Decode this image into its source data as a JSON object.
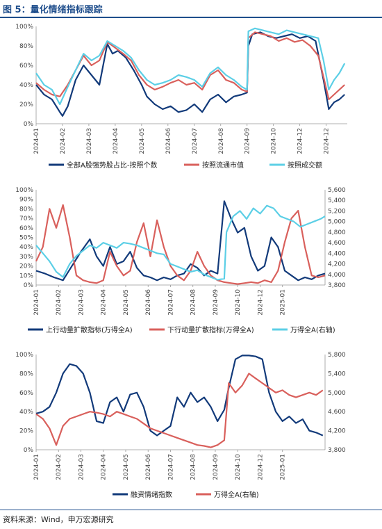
{
  "figure": {
    "title": "图 5：量化情绪指标跟踪",
    "source": "资料来源：Wind，申万宏源研究"
  },
  "colors": {
    "navy": "#123a7a",
    "red": "#d9605c",
    "cyan": "#5ccfe6"
  },
  "chart_data": [
    {
      "type": "line",
      "x_ticks": [
        "2024-01",
        "2024-02",
        "2024-03",
        "2024-04",
        "2024-05",
        "2024-06",
        "2024-07",
        "2024-08",
        "2024-09",
        "2024-10",
        "2024-12",
        "2024-12"
      ],
      "y_ticks": [
        "0%",
        "20%",
        "40%",
        "60%",
        "80%",
        "100%"
      ],
      "ylim": [
        0,
        100
      ],
      "x_range": [
        0,
        11.8
      ],
      "series": [
        {
          "name": "全部A股强势股占比-按照个数",
          "color": "#123a7a",
          "x": [
            0,
            0.3,
            0.6,
            0.9,
            1.0,
            1.2,
            1.5,
            1.8,
            2.1,
            2.4,
            2.7,
            2.9,
            3.1,
            3.4,
            3.7,
            4.0,
            4.2,
            4.5,
            4.8,
            5.1,
            5.4,
            5.7,
            6.0,
            6.3,
            6.6,
            6.9,
            7.2,
            7.5,
            7.8,
            8.0,
            8.05,
            8.2,
            8.5,
            8.8,
            9.1,
            9.4,
            9.7,
            10.0,
            10.3,
            10.6,
            10.9,
            11.1,
            11.3,
            11.5,
            11.7
          ],
          "y": [
            40,
            30,
            25,
            12,
            8,
            18,
            45,
            60,
            50,
            40,
            82,
            72,
            75,
            68,
            55,
            40,
            28,
            20,
            15,
            18,
            12,
            14,
            20,
            12,
            25,
            30,
            22,
            28,
            30,
            32,
            80,
            92,
            94,
            90,
            88,
            90,
            92,
            88,
            90,
            85,
            45,
            15,
            22,
            25,
            30
          ]
        },
        {
          "name": "按照流通市值",
          "color": "#d9605c",
          "x": [
            0,
            0.3,
            0.6,
            0.9,
            1.2,
            1.5,
            1.8,
            2.1,
            2.4,
            2.7,
            3.0,
            3.3,
            3.6,
            3.9,
            4.2,
            4.5,
            4.8,
            5.1,
            5.4,
            5.7,
            6.0,
            6.3,
            6.6,
            6.9,
            7.2,
            7.5,
            7.8,
            8.0,
            8.05,
            8.3,
            8.6,
            8.9,
            9.2,
            9.5,
            9.8,
            10.1,
            10.4,
            10.7,
            10.9,
            11.1,
            11.3,
            11.5,
            11.7
          ],
          "y": [
            42,
            35,
            30,
            28,
            40,
            55,
            70,
            60,
            65,
            84,
            78,
            72,
            65,
            50,
            40,
            35,
            38,
            42,
            45,
            40,
            42,
            35,
            50,
            55,
            45,
            42,
            35,
            33,
            88,
            94,
            92,
            90,
            85,
            88,
            84,
            86,
            80,
            70,
            48,
            25,
            30,
            35,
            40
          ]
        },
        {
          "name": "按照成交额",
          "color": "#5ccfe6",
          "x": [
            0,
            0.3,
            0.6,
            0.9,
            1.2,
            1.5,
            1.8,
            2.1,
            2.4,
            2.7,
            3.0,
            3.3,
            3.6,
            3.9,
            4.2,
            4.5,
            4.8,
            5.1,
            5.4,
            5.7,
            6.0,
            6.3,
            6.6,
            6.9,
            7.2,
            7.5,
            7.8,
            8.0,
            8.05,
            8.3,
            8.6,
            8.9,
            9.2,
            9.5,
            9.8,
            10.1,
            10.4,
            10.7,
            10.9,
            11.1,
            11.3,
            11.5,
            11.7
          ],
          "y": [
            52,
            40,
            35,
            20,
            38,
            55,
            72,
            65,
            70,
            85,
            80,
            75,
            68,
            55,
            45,
            40,
            42,
            45,
            50,
            48,
            45,
            38,
            52,
            58,
            50,
            45,
            38,
            35,
            95,
            98,
            96,
            94,
            92,
            96,
            94,
            92,
            90,
            88,
            65,
            35,
            45,
            52,
            62
          ]
        }
      ],
      "legend": [
        "全部A股强势股占比-按照个数",
        "按照流通市值",
        "按照成交额"
      ]
    },
    {
      "type": "line",
      "x_ticks": [
        "2024-01",
        "2024-02",
        "2024-03",
        "2024-04",
        "2024-05",
        "2024-06",
        "2024-07",
        "2024-08",
        "2024-09",
        "2024-10",
        "2024-12",
        "2025-01"
      ],
      "y_ticks": [
        "0%",
        "10%",
        "20%",
        "30%",
        "40%",
        "50%",
        "60%",
        "70%",
        "80%",
        "90%",
        "100%"
      ],
      "y2_ticks": [
        "3,800",
        "4,000",
        "4,200",
        "4,400",
        "4,600",
        "4,800",
        "5,000",
        "5,200",
        "5,400",
        "5,600"
      ],
      "ylim": [
        0,
        100
      ],
      "y2lim": [
        3800,
        5600
      ],
      "x_range": [
        0,
        12.9
      ],
      "series": [
        {
          "name": "上行动量扩散指标(万得全A)",
          "color": "#123a7a",
          "axis": "left",
          "x": [
            0,
            0.4,
            0.8,
            1.2,
            1.6,
            2.0,
            2.4,
            2.7,
            3.0,
            3.3,
            3.6,
            3.9,
            4.2,
            4.5,
            4.8,
            5.1,
            5.4,
            5.7,
            6.0,
            6.3,
            6.6,
            6.9,
            7.2,
            7.5,
            7.8,
            8.1,
            8.4,
            8.7,
            9.0,
            9.3,
            9.6,
            9.9,
            10.2,
            10.5,
            10.8,
            11.1,
            11.4,
            11.7,
            12.0,
            12.3,
            12.6,
            12.9
          ],
          "y": [
            15,
            12,
            8,
            5,
            20,
            35,
            48,
            30,
            20,
            40,
            22,
            25,
            35,
            18,
            10,
            8,
            5,
            8,
            6,
            10,
            12,
            22,
            18,
            10,
            15,
            12,
            88,
            70,
            55,
            60,
            30,
            15,
            20,
            50,
            40,
            15,
            10,
            5,
            8,
            6,
            10,
            12
          ]
        },
        {
          "name": "下行动量扩散指标(万得全A)",
          "color": "#d9605c",
          "axis": "left",
          "x": [
            0,
            0.3,
            0.6,
            0.9,
            1.2,
            1.5,
            1.8,
            2.1,
            2.4,
            2.7,
            3.0,
            3.3,
            3.6,
            3.9,
            4.2,
            4.5,
            4.8,
            5.1,
            5.4,
            5.7,
            6.0,
            6.3,
            6.6,
            6.9,
            7.2,
            7.5,
            7.8,
            8.1,
            8.4,
            8.7,
            9.0,
            9.3,
            9.6,
            9.9,
            10.2,
            10.5,
            10.8,
            11.1,
            11.4,
            11.7,
            12.0,
            12.3,
            12.6,
            12.9
          ],
          "y": [
            25,
            40,
            80,
            60,
            84,
            50,
            10,
            5,
            3,
            2,
            5,
            35,
            20,
            10,
            15,
            45,
            65,
            30,
            68,
            40,
            20,
            10,
            5,
            15,
            35,
            20,
            10,
            5,
            3,
            2,
            1,
            2,
            3,
            2,
            5,
            3,
            15,
            45,
            70,
            78,
            40,
            10,
            8,
            10
          ]
        },
        {
          "name": "万得全A(右轴)",
          "color": "#5ccfe6",
          "axis": "right",
          "x": [
            0,
            0.3,
            0.6,
            0.9,
            1.2,
            1.5,
            1.8,
            2.1,
            2.4,
            2.7,
            3.0,
            3.3,
            3.6,
            3.9,
            4.2,
            4.5,
            4.8,
            5.1,
            5.4,
            5.7,
            6.0,
            6.3,
            6.6,
            6.9,
            7.2,
            7.5,
            7.8,
            8.1,
            8.4,
            8.5,
            8.8,
            9.1,
            9.4,
            9.7,
            10.0,
            10.3,
            10.6,
            10.9,
            11.2,
            11.5,
            11.8,
            12.1,
            12.4,
            12.7,
            12.9
          ],
          "y": [
            4550,
            4400,
            4250,
            4050,
            3950,
            4200,
            4350,
            4450,
            4550,
            4500,
            4600,
            4550,
            4500,
            4600,
            4580,
            4550,
            4500,
            4450,
            4400,
            4380,
            4200,
            4150,
            4100,
            4050,
            4080,
            4000,
            3950,
            3900,
            3920,
            4800,
            5100,
            5200,
            5050,
            5250,
            5150,
            5300,
            5250,
            5100,
            5050,
            5000,
            4900,
            4950,
            5000,
            5050,
            5100
          ]
        }
      ],
      "legend": [
        "上行动量扩散指标(万得全A)",
        "下行动量扩散指标(万得全A)",
        "万得全A(右轴)"
      ]
    },
    {
      "type": "line",
      "x_ticks": [
        "2024-01",
        "2024-02",
        "2024-03",
        "2024-04",
        "2024-05",
        "2024-06",
        "2024-07",
        "2024-08",
        "2024-09",
        "2024-10",
        "2024-12",
        "2025-01"
      ],
      "y_ticks": [
        "0%",
        "20%",
        "40%",
        "60%",
        "80%",
        "100%"
      ],
      "y2_ticks": [
        "3,800",
        "4,200",
        "4,600",
        "5,000",
        "5,400",
        "5,800"
      ],
      "ylim": [
        0,
        100
      ],
      "y2lim": [
        3800,
        5800
      ],
      "x_range": [
        0,
        12.9
      ],
      "series": [
        {
          "name": "融资情绪指数",
          "color": "#123a7a",
          "axis": "left",
          "x": [
            0,
            0.3,
            0.6,
            0.9,
            1.2,
            1.5,
            1.8,
            2.1,
            2.4,
            2.7,
            3.0,
            3.3,
            3.6,
            3.9,
            4.2,
            4.5,
            4.8,
            5.1,
            5.4,
            5.7,
            6.0,
            6.3,
            6.6,
            6.9,
            7.2,
            7.5,
            7.8,
            8.1,
            8.4,
            8.6,
            8.9,
            9.2,
            9.5,
            9.8,
            10.1,
            10.4,
            10.7,
            11.0,
            11.3,
            11.6,
            11.9,
            12.2,
            12.5,
            12.8
          ],
          "y": [
            38,
            40,
            45,
            60,
            80,
            90,
            88,
            80,
            60,
            30,
            28,
            50,
            55,
            40,
            58,
            60,
            45,
            20,
            15,
            20,
            25,
            55,
            45,
            60,
            50,
            55,
            45,
            30,
            42,
            65,
            95,
            99,
            99,
            98,
            95,
            60,
            40,
            30,
            35,
            28,
            32,
            20,
            18,
            15
          ]
        },
        {
          "name": "万得全A(右轴)",
          "color": "#d9605c",
          "axis": "right",
          "x": [
            0,
            0.3,
            0.6,
            0.9,
            1.2,
            1.5,
            1.8,
            2.1,
            2.4,
            2.7,
            3.0,
            3.3,
            3.6,
            3.9,
            4.2,
            4.5,
            4.8,
            5.1,
            5.4,
            5.7,
            6.0,
            6.3,
            6.6,
            6.9,
            7.2,
            7.5,
            7.8,
            8.1,
            8.4,
            8.6,
            8.9,
            9.2,
            9.5,
            9.8,
            10.1,
            10.4,
            10.7,
            11.0,
            11.3,
            11.6,
            11.9,
            12.2,
            12.5,
            12.8
          ],
          "y": [
            4550,
            4450,
            4250,
            3900,
            4300,
            4450,
            4500,
            4550,
            4600,
            4580,
            4550,
            4500,
            4600,
            4550,
            4500,
            4450,
            4350,
            4250,
            4200,
            4150,
            4100,
            4050,
            4000,
            3950,
            3900,
            3880,
            3850,
            3900,
            4000,
            5200,
            5000,
            5150,
            5400,
            5300,
            5200,
            5100,
            5000,
            5050,
            4950,
            4900,
            4950,
            5000,
            4950,
            5050
          ]
        }
      ],
      "legend": [
        "融资情绪指数",
        "万得全A(右轴)"
      ]
    }
  ]
}
